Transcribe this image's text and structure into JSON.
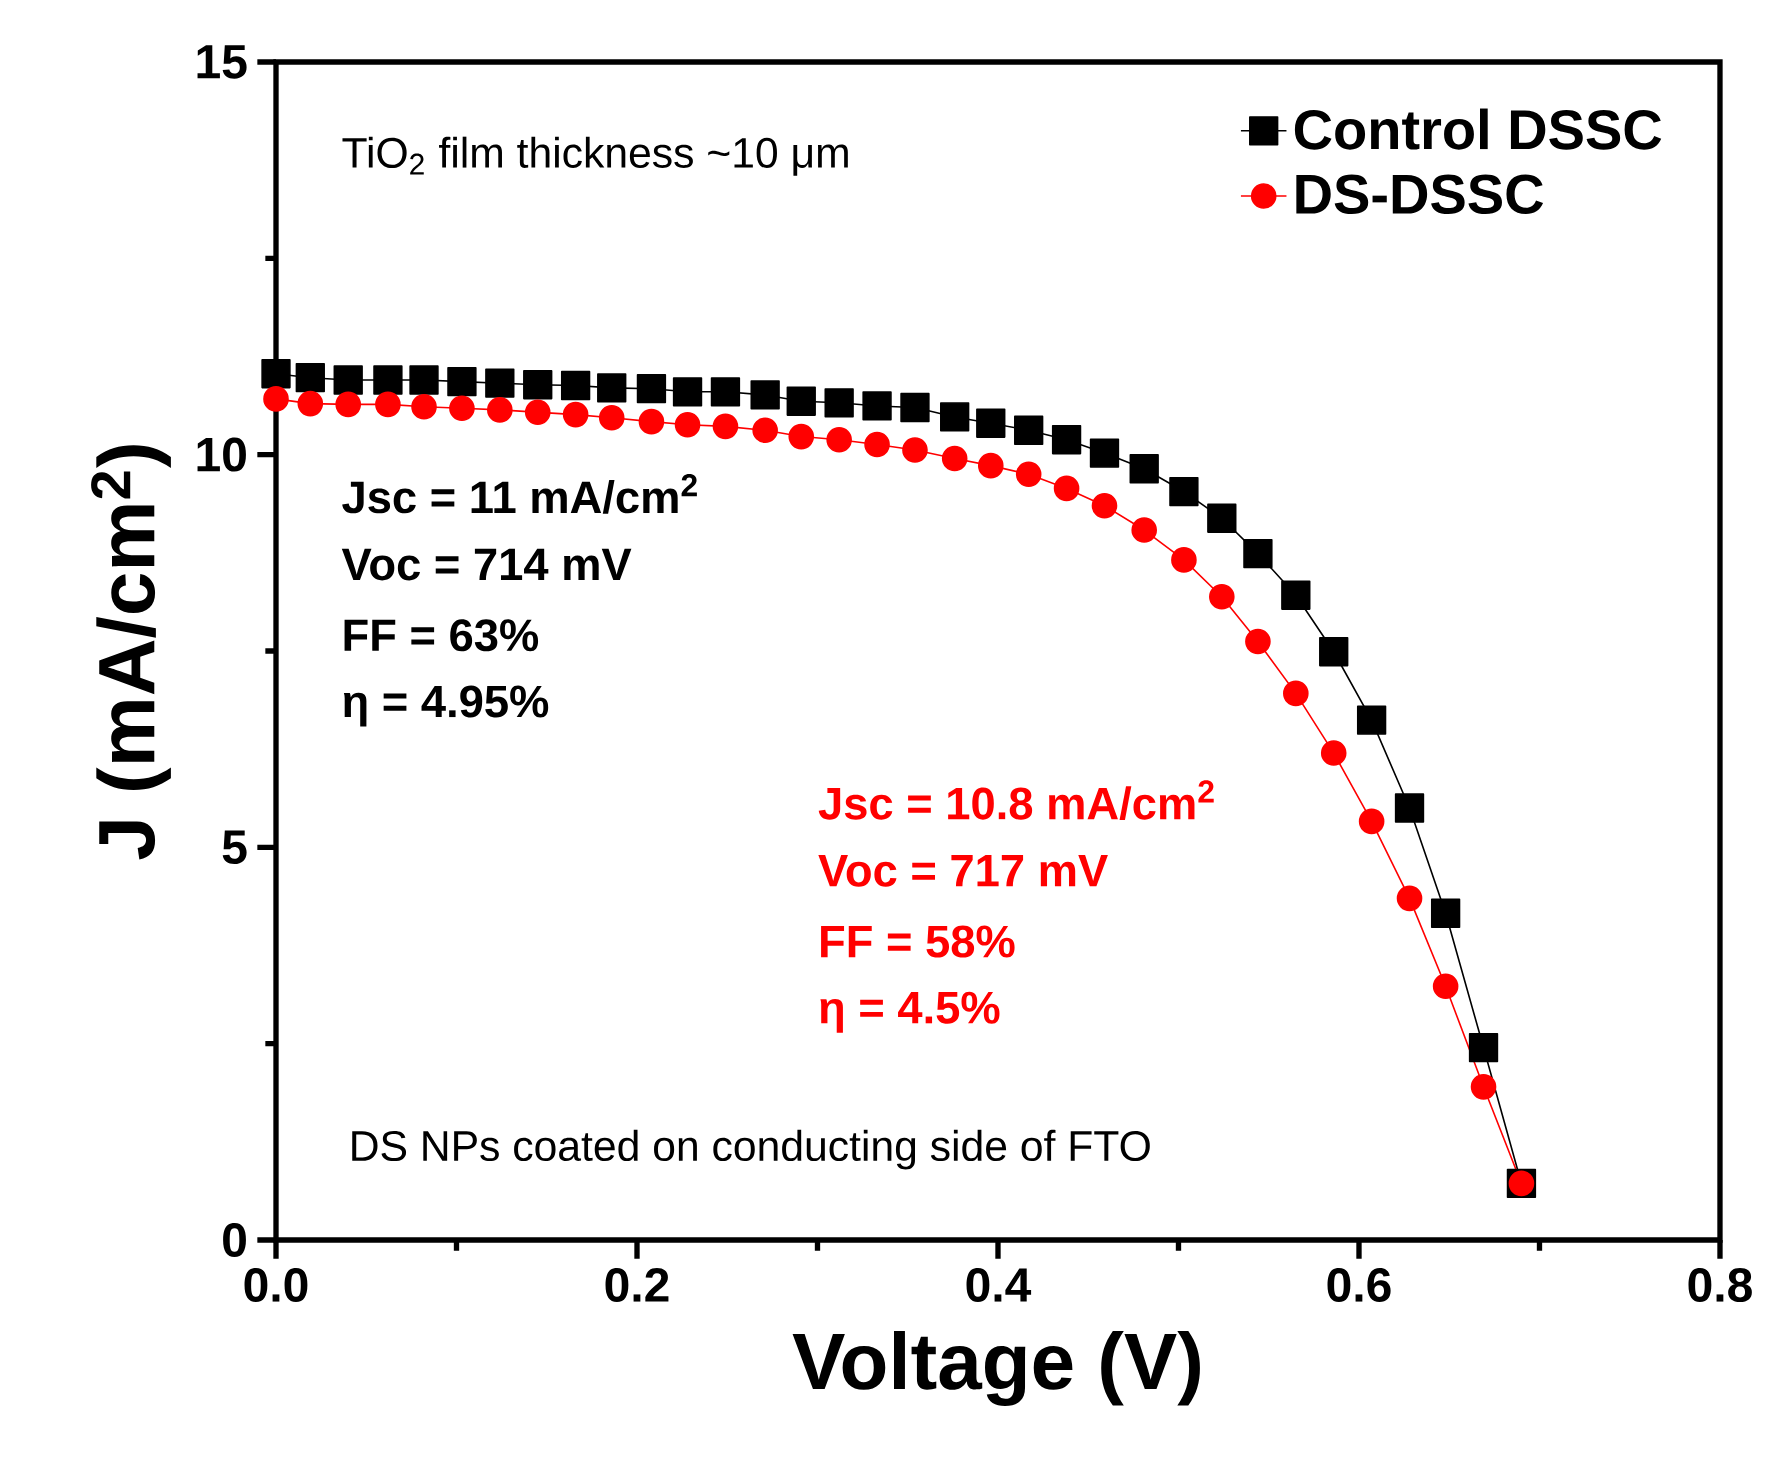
{
  "chart_data": {
    "type": "line",
    "xlabel": "Voltage (V)",
    "ylabel": "J (mA/cm$^{2}$)",
    "xlim": [
      0,
      0.8
    ],
    "ylim": [
      0,
      15
    ],
    "xticks": [
      {
        "value": 0,
        "label": "0.0"
      },
      0.2,
      0.4,
      0.6,
      0.8
    ],
    "yticks": [
      0,
      5,
      10,
      15
    ],
    "legend": "top right",
    "grid": false,
    "line_style": "solid",
    "annotations": [
      "TiO$_{2}$ film thickness ~10 μm",
      "Jsc = 11 mA/cm$^{2}$",
      "Voc = 714 mV",
      "FF = 63%",
      "η = 4.95%",
      "Jsc = 10.8 mA/cm$^{2}$",
      "Voc = 717 mV",
      "FF = 58%",
      "η = 4.5%",
      "DS NPs coated on conducting side of FTO"
    ],
    "series": [
      {
        "name": "Control DSSC",
        "color": "#000000",
        "marker": "square",
        "x": [
          0.0,
          0.019,
          0.04,
          0.062,
          0.082,
          0.103,
          0.124,
          0.145,
          0.166,
          0.186,
          0.208,
          0.228,
          0.249,
          0.271,
          0.291,
          0.312,
          0.333,
          0.354,
          0.376,
          0.396,
          0.417,
          0.438,
          0.459,
          0.481,
          0.503,
          0.524,
          0.544,
          0.565,
          0.586,
          0.607,
          0.628,
          0.648,
          0.669,
          0.69
        ],
        "values": [
          11.03,
          10.98,
          10.95,
          10.95,
          10.95,
          10.93,
          10.91,
          10.89,
          10.88,
          10.85,
          10.84,
          10.8,
          10.8,
          10.76,
          10.68,
          10.66,
          10.62,
          10.6,
          10.48,
          10.4,
          10.31,
          10.19,
          10.02,
          9.82,
          9.53,
          9.19,
          8.74,
          8.21,
          7.49,
          6.62,
          5.5,
          4.16,
          2.45,
          0.72
        ]
      },
      {
        "name": "DS-DSSC",
        "color": "#ff0000",
        "marker": "circle",
        "x": [
          0.0,
          0.019,
          0.04,
          0.062,
          0.082,
          0.103,
          0.124,
          0.145,
          0.166,
          0.186,
          0.208,
          0.228,
          0.249,
          0.271,
          0.291,
          0.312,
          0.333,
          0.354,
          0.376,
          0.396,
          0.417,
          0.438,
          0.459,
          0.481,
          0.503,
          0.524,
          0.544,
          0.565,
          0.586,
          0.607,
          0.628,
          0.648,
          0.669,
          0.69
        ],
        "values": [
          10.71,
          10.65,
          10.64,
          10.64,
          10.61,
          10.59,
          10.57,
          10.54,
          10.51,
          10.47,
          10.42,
          10.38,
          10.36,
          10.31,
          10.23,
          10.19,
          10.13,
          10.06,
          9.95,
          9.86,
          9.75,
          9.57,
          9.35,
          9.04,
          8.66,
          8.19,
          7.62,
          6.96,
          6.2,
          5.33,
          4.35,
          3.23,
          1.95,
          0.72
        ]
      }
    ]
  }
}
